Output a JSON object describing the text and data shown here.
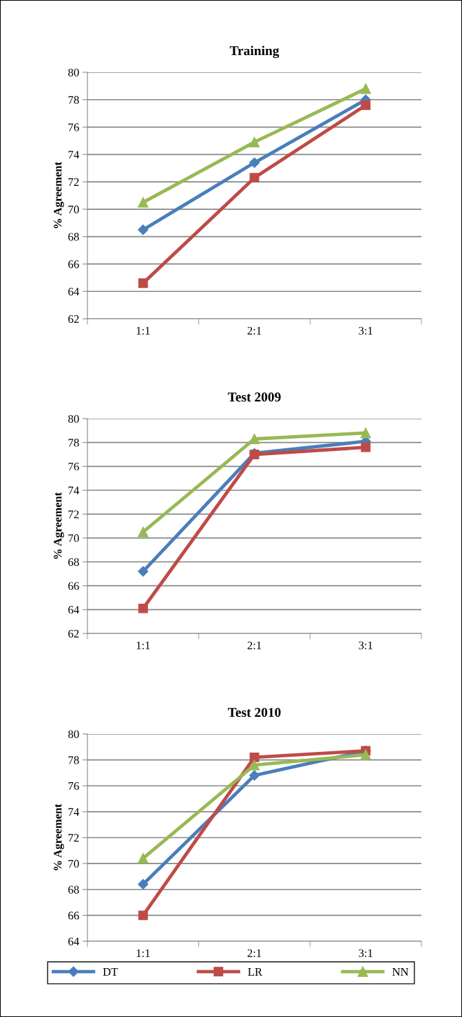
{
  "chart_data": [
    {
      "type": "line",
      "title": "Training",
      "ylabel": "% Agreement",
      "categories": [
        "1:1",
        "2:1",
        "3:1"
      ],
      "ylim": [
        62,
        80
      ],
      "yticks": [
        62,
        64,
        66,
        68,
        70,
        72,
        74,
        76,
        78,
        80
      ],
      "grid": "y",
      "legend": "bottom",
      "series": [
        {
          "name": "DT",
          "color": "#4a7ebb",
          "marker": "diamond",
          "values": [
            68.5,
            73.4,
            78.0
          ]
        },
        {
          "name": "LR",
          "color": "#be4b48",
          "marker": "square",
          "values": [
            64.6,
            72.3,
            77.6
          ]
        },
        {
          "name": "NN",
          "color": "#98b954",
          "marker": "triangle",
          "values": [
            70.5,
            74.9,
            78.8
          ]
        }
      ]
    },
    {
      "type": "line",
      "title": "Test 2009",
      "ylabel": "% Agreement",
      "categories": [
        "1:1",
        "2:1",
        "3:1"
      ],
      "ylim": [
        62,
        80
      ],
      "yticks": [
        62,
        64,
        66,
        68,
        70,
        72,
        74,
        76,
        78,
        80
      ],
      "grid": "y",
      "series": [
        {
          "color": "#4a7ebb",
          "marker": "diamond",
          "values": [
            67.2,
            77.1,
            78.1
          ]
        },
        {
          "color": "#be4b48",
          "marker": "square",
          "values": [
            64.1,
            77.0,
            77.6
          ]
        },
        {
          "color": "#98b954",
          "marker": "triangle",
          "values": [
            70.5,
            78.3,
            78.8
          ]
        }
      ]
    },
    {
      "type": "line",
      "title": "Test 2010",
      "ylabel": "% Agreement",
      "categories": [
        "1:1",
        "2:1",
        "3:1"
      ],
      "ylim": [
        64,
        80
      ],
      "yticks": [
        64,
        66,
        68,
        70,
        72,
        74,
        76,
        78,
        80
      ],
      "grid": "y",
      "series": [
        {
          "color": "#4a7ebb",
          "marker": "diamond",
          "values": [
            68.4,
            76.8,
            78.7
          ]
        },
        {
          "color": "#be4b48",
          "marker": "square",
          "values": [
            66.0,
            78.2,
            78.7
          ]
        },
        {
          "color": "#98b954",
          "marker": "triangle",
          "values": [
            70.4,
            77.6,
            78.4
          ]
        }
      ]
    }
  ]
}
